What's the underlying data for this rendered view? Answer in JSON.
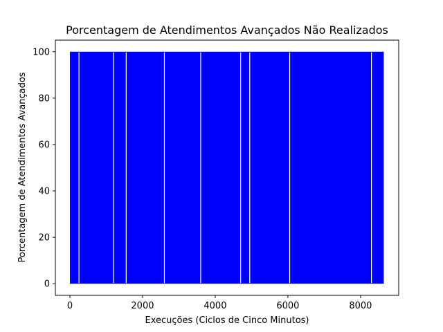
{
  "chart_data": {
    "type": "line",
    "title": "Porcentagem de Atendimentos Avançados Não Realizados",
    "xlabel": "Execuções (Ciclos de Cinco Minutos)",
    "ylabel": "Porcentagem de Atendimentos Avançados",
    "xlim": [
      -400,
      9050
    ],
    "ylim": [
      -5,
      105
    ],
    "xticks": [
      0,
      2000,
      4000,
      6000,
      8000
    ],
    "xtick_labels": [
      "0",
      "2000",
      "4000",
      "6000",
      "8000"
    ],
    "yticks": [
      0,
      20,
      40,
      60,
      80,
      100
    ],
    "ytick_labels": [
      "0",
      "20",
      "40",
      "60",
      "80",
      "100"
    ],
    "grid": false,
    "legend": "none",
    "series": [
      {
        "color": "#0000ff",
        "x_range": [
          0,
          8640
        ],
        "values_observed": [
          0,
          100
        ],
        "description_of_pattern": "rapid oscillation between 0 and 100",
        "gaps_near_x": [
          250,
          1200,
          1550,
          2600,
          3600,
          4700,
          4950,
          6050,
          8300
        ]
      }
    ]
  }
}
